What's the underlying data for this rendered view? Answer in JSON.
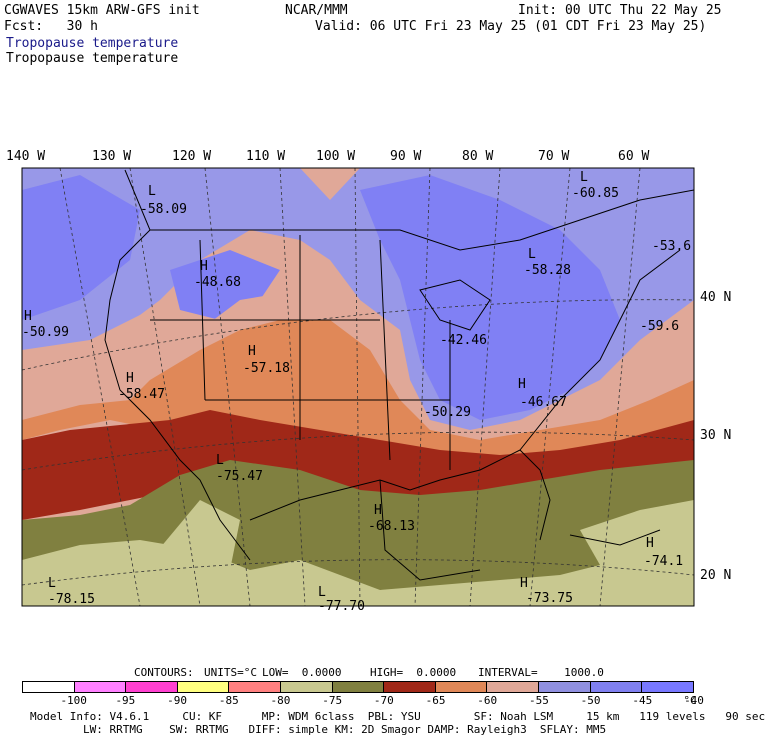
{
  "header": {
    "model": "CGWAVES 15km ARW-GFS init",
    "forecast": "Fcst:   30 h",
    "org": "NCAR/MMM",
    "init": "Init: 00 UTC Thu 22 May 25",
    "valid": "Valid: 06 UTC Fri 23 May 25 (01 CDT Fri 23 May 25)",
    "field_title_1": "Tropopause temperature",
    "field_title_2": "Tropopause temperature"
  },
  "longitude_labels": [
    "140 W",
    "130 W",
    "120 W",
    "110 W",
    "100 W",
    "90 W",
    "80 W",
    "70 W",
    "60 W"
  ],
  "latitude_labels": [
    "40 N",
    "30 N",
    "20 N"
  ],
  "centers": [
    {
      "type": "L",
      "value": "-58.09"
    },
    {
      "type": "H",
      "value": "-48.68"
    },
    {
      "type": "H",
      "value": "-50.99"
    },
    {
      "type": "H",
      "value": "-57.18"
    },
    {
      "type": "H",
      "value": "-58.47"
    },
    {
      "type": "L",
      "value": "-75.47"
    },
    {
      "type": "H",
      "value": "-68.13"
    },
    {
      "type": "L",
      "value": "-78.15"
    },
    {
      "type": "L",
      "value": "-77.70"
    },
    {
      "type": "L",
      "value": "-60.85"
    },
    {
      "type": "",
      "value": "-53.6"
    },
    {
      "type": "L",
      "value": "-58.28"
    },
    {
      "type": "",
      "value": "-59.6"
    },
    {
      "type": "",
      "value": "-42.46"
    },
    {
      "type": "",
      "value": "-50.29"
    },
    {
      "type": "H",
      "value": "-46.67"
    },
    {
      "type": "H",
      "value": "-74.1"
    },
    {
      "type": "H",
      "value": "-73.75"
    }
  ],
  "contour_info": {
    "contours": "CONTOURS:",
    "units": "UNITS=°C",
    "low": "LOW=  0.0000",
    "high": "HIGH=  0.0000",
    "interval": "INTERVAL=    1000.0"
  },
  "colorbar": {
    "colors": [
      "#ffffff",
      "#ff80ff",
      "#ff40d0",
      "#ffff80",
      "#ff8080",
      "#c8c890",
      "#808040",
      "#a02818",
      "#e08858",
      "#e0a898",
      "#9090e0",
      "#8080f0",
      "#7878ff"
    ],
    "labels": [
      "-100",
      "-95",
      "-90",
      "-85",
      "-80",
      "-75",
      "-70",
      "-65",
      "-60",
      "-55",
      "-50",
      "-45",
      "-40",
      "°C"
    ]
  },
  "footer": {
    "line1": "Model Info: V4.6.1     CU: KF      MP: WDM 6class  PBL: YSU        SF: Noah LSM     15 km   119 levels   90 sec",
    "line2": "        LW: RRTMG    SW: RRTMG   DIFF: simple KM: 2D Smagor DAMP: Rayleigh3  SFLAY: MM5"
  }
}
